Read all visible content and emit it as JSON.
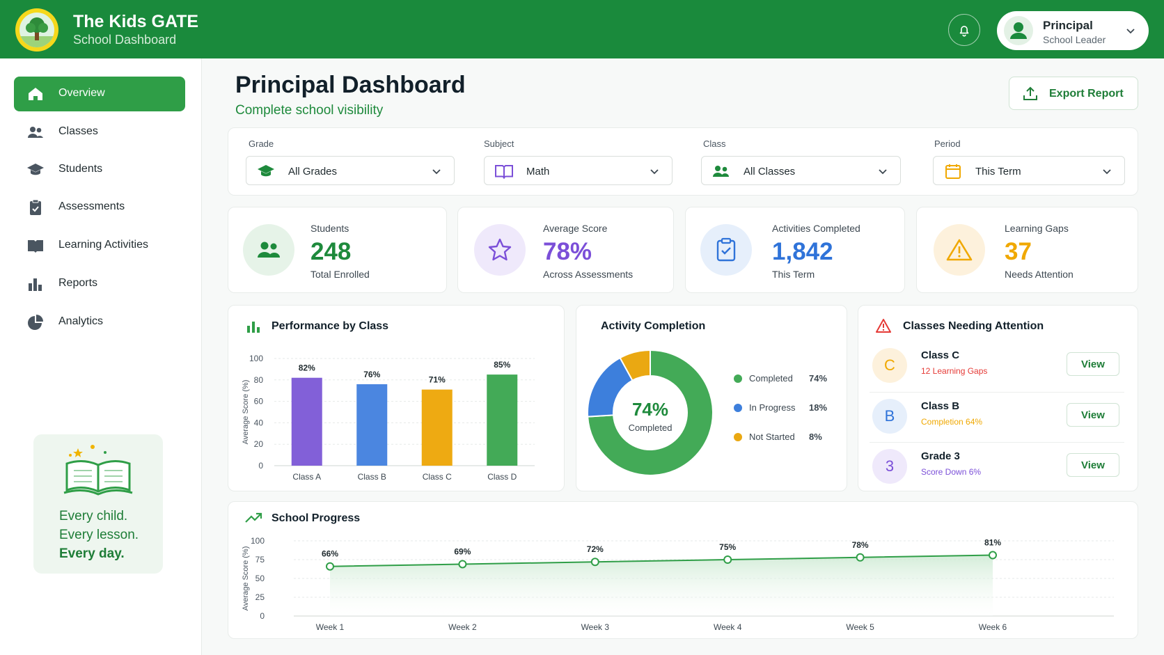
{
  "header": {
    "app_title": "The Kids GATE",
    "app_subtitle": "School Dashboard",
    "user_name": "Principal",
    "user_role": "School Leader"
  },
  "sidebar": {
    "items": [
      {
        "label": "Overview",
        "icon": "home-icon",
        "active": true
      },
      {
        "label": "Classes",
        "icon": "users-icon"
      },
      {
        "label": "Students",
        "icon": "graduation-cap-icon"
      },
      {
        "label": "Assessments",
        "icon": "clipboard-icon"
      },
      {
        "label": "Learning Activities",
        "icon": "book-icon"
      },
      {
        "label": "Reports",
        "icon": "bar-chart-icon"
      },
      {
        "label": "Analytics",
        "icon": "pie-chart-icon"
      }
    ],
    "promo": {
      "line1": "Every child.",
      "line2": "Every lesson.",
      "line3": "Every day."
    }
  },
  "page": {
    "title": "Principal Dashboard",
    "subtitle": "Complete school visibility",
    "export_label": "Export Report"
  },
  "filters": {
    "grade": {
      "label": "Grade",
      "value": "All Grades"
    },
    "subject": {
      "label": "Subject",
      "value": "Math"
    },
    "class": {
      "label": "Class",
      "value": "All Classes"
    },
    "period": {
      "label": "Period",
      "value": "This Term"
    }
  },
  "stats": [
    {
      "label": "Students",
      "value": "248",
      "sub": "Total Enrolled",
      "color": "#1e8a3c"
    },
    {
      "label": "Average Score",
      "value": "78%",
      "sub": "Across Assessments",
      "color": "#7b4fd8"
    },
    {
      "label": "Activities Completed",
      "value": "1,842",
      "sub": "This Term",
      "color": "#2f73d9"
    },
    {
      "label": "Learning Gaps",
      "value": "37",
      "sub": "Needs Attention",
      "color": "#f0a800"
    }
  ],
  "performance": {
    "title": "Performance by Class",
    "chart_data": {
      "type": "bar",
      "categories": [
        "Class A",
        "Class B",
        "Class C",
        "Class D"
      ],
      "values": [
        82,
        76,
        71,
        85
      ],
      "value_labels": [
        "82%",
        "76%",
        "71%",
        "85%"
      ],
      "colors": [
        "#8260d8",
        "#4b86e0",
        "#eeaa12",
        "#43aa57"
      ],
      "ylabel": "Average Score (%)",
      "yticks": [
        0,
        20,
        40,
        60,
        80,
        100
      ],
      "ylim": [
        0,
        100
      ],
      "grid": true
    }
  },
  "completion": {
    "title": "Activity Completion",
    "center_value": "74%",
    "center_label": "Completed",
    "chart_data": {
      "type": "pie",
      "labels": [
        "Completed",
        "In Progress",
        "Not Started"
      ],
      "values": [
        74,
        18,
        8
      ],
      "value_labels": [
        "74%",
        "18%",
        "8%"
      ],
      "colors": [
        "#43aa57",
        "#3d7fdc",
        "#eaa812"
      ]
    }
  },
  "attention": {
    "title": "Classes Needing Attention",
    "items": [
      {
        "badge": "C",
        "name": "Class C",
        "note": "12 Learning Gaps",
        "note_color": "#e53935",
        "badge_bg": "#fdf1dc",
        "badge_color": "#f0a800",
        "action": "View"
      },
      {
        "badge": "B",
        "name": "Class B",
        "note": "Completion 64%",
        "note_color": "#f0a800",
        "badge_bg": "#e6effb",
        "badge_color": "#2f73d9",
        "action": "View"
      },
      {
        "badge": "3",
        "name": "Grade 3",
        "note": "Score Down 6%",
        "note_color": "#7b4fd8",
        "badge_bg": "#efe9fb",
        "badge_color": "#7b4fd8",
        "action": "View"
      }
    ]
  },
  "progress": {
    "title": "School Progress",
    "chart_data": {
      "type": "line",
      "x": [
        "Week 1",
        "Week 2",
        "Week 3",
        "Week 4",
        "Week 5",
        "Week 6"
      ],
      "values": [
        66,
        69,
        72,
        75,
        78,
        81
      ],
      "value_labels": [
        "66%",
        "69%",
        "72%",
        "75%",
        "78%",
        "81%"
      ],
      "ylabel": "Average Score (%)",
      "yticks": [
        0,
        25,
        50,
        75,
        100
      ],
      "ylim": [
        0,
        100
      ],
      "color": "#2f9e47",
      "grid": true
    }
  }
}
